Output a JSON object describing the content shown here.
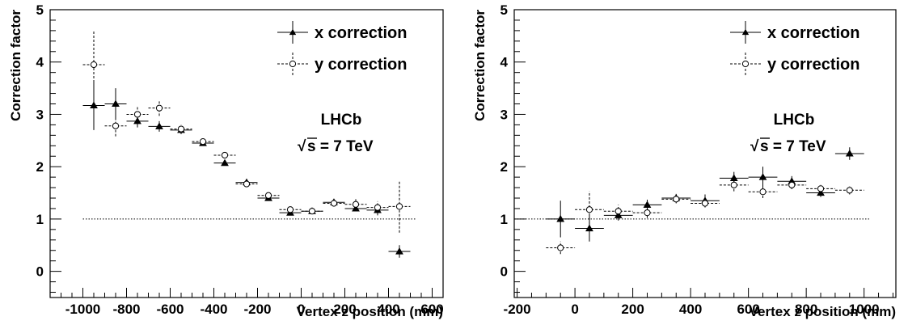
{
  "chart_data": [
    {
      "type": "scatter",
      "xlabel": "Vertex z position (mm)",
      "ylabel": "Correction factor",
      "xlim": [
        -1150,
        650
      ],
      "ylim": [
        -0.5,
        5
      ],
      "xticks": [
        -1000,
        -800,
        -600,
        -400,
        -200,
        0,
        200,
        400,
        600
      ],
      "xtick_labels": [
        "-1000",
        "-800",
        "-600",
        "-400",
        "-200",
        "0",
        "200",
        "400",
        "600"
      ],
      "yticks": [
        0,
        1,
        2,
        3,
        4,
        5
      ],
      "ytick_labels": [
        "0",
        "1",
        "2",
        "3",
        "4",
        "5"
      ],
      "reference_line": 1,
      "legend": {
        "placement": "top-right",
        "entries": [
          "x correction",
          "y correction"
        ]
      },
      "annotations": [
        "LHCb",
        "s = 7 TeV"
      ],
      "annotation_sqrt": "√",
      "series": [
        {
          "name": "x correction",
          "marker": "filled-triangle",
          "line": "solid",
          "xerr": 50,
          "x": [
            -950,
            -850,
            -750,
            -650,
            -550,
            -450,
            -350,
            -250,
            -150,
            -50,
            50,
            150,
            250,
            350,
            450
          ],
          "y": [
            3.17,
            3.2,
            2.87,
            2.77,
            2.7,
            2.45,
            2.07,
            1.7,
            1.4,
            1.12,
            1.15,
            1.32,
            1.2,
            1.17,
            0.38
          ],
          "yerr": [
            0.47,
            0.3,
            0.12,
            0.1,
            0.08,
            0.05,
            0.04,
            0.04,
            0.04,
            0.04,
            0.03,
            0.04,
            0.05,
            0.1,
            0.12
          ]
        },
        {
          "name": "y correction",
          "marker": "open-circle",
          "line": "dashed",
          "xerr": 50,
          "x": [
            -950,
            -850,
            -750,
            -650,
            -550,
            -450,
            -350,
            -250,
            -150,
            -50,
            50,
            150,
            250,
            350,
            450
          ],
          "y": [
            3.95,
            2.78,
            3.0,
            3.12,
            2.72,
            2.48,
            2.22,
            1.67,
            1.45,
            1.18,
            1.15,
            1.3,
            1.28,
            1.22,
            1.24
          ],
          "yerr": [
            0.65,
            0.2,
            0.14,
            0.15,
            0.08,
            0.05,
            0.05,
            0.04,
            0.04,
            0.03,
            0.03,
            0.04,
            0.1,
            0.12,
            0.5
          ]
        }
      ]
    },
    {
      "type": "scatter",
      "xlabel": "Vertex z position (mm)",
      "ylabel": "Correction factor",
      "xlim": [
        -210,
        1110
      ],
      "ylim": [
        -0.5,
        5
      ],
      "xticks": [
        -200,
        0,
        200,
        400,
        600,
        800,
        1000
      ],
      "xtick_labels": [
        "-200",
        "0",
        "200",
        "400",
        "600",
        "800",
        "1000"
      ],
      "yticks": [
        0,
        1,
        2,
        3,
        4,
        5
      ],
      "ytick_labels": [
        "0",
        "1",
        "2",
        "3",
        "4",
        "5"
      ],
      "reference_line": 1,
      "legend": {
        "placement": "top-right",
        "entries": [
          "x correction",
          "y correction"
        ]
      },
      "annotations": [
        "LHCb",
        "s = 7 TeV"
      ],
      "annotation_sqrt": "√",
      "series": [
        {
          "name": "x correction",
          "marker": "filled-triangle",
          "line": "solid",
          "xerr": 50,
          "x": [
            -50,
            50,
            150,
            250,
            350,
            450,
            550,
            650,
            750,
            850,
            950
          ],
          "y": [
            1.0,
            0.82,
            1.07,
            1.27,
            1.4,
            1.35,
            1.78,
            1.8,
            1.72,
            1.5,
            2.25
          ],
          "yerr": [
            0.35,
            0.25,
            0.1,
            0.1,
            0.08,
            0.12,
            0.12,
            0.2,
            0.1,
            0.08,
            0.12
          ]
        },
        {
          "name": "y correction",
          "marker": "open-circle",
          "line": "dashed",
          "xerr": 50,
          "x": [
            -50,
            50,
            150,
            250,
            350,
            450,
            550,
            650,
            750,
            850,
            950
          ],
          "y": [
            0.45,
            1.18,
            1.15,
            1.12,
            1.38,
            1.3,
            1.65,
            1.52,
            1.65,
            1.58,
            1.55
          ],
          "yerr": [
            0.12,
            0.35,
            0.12,
            0.1,
            0.08,
            0.08,
            0.12,
            0.12,
            0.08,
            0.08,
            0.08
          ]
        }
      ]
    }
  ]
}
